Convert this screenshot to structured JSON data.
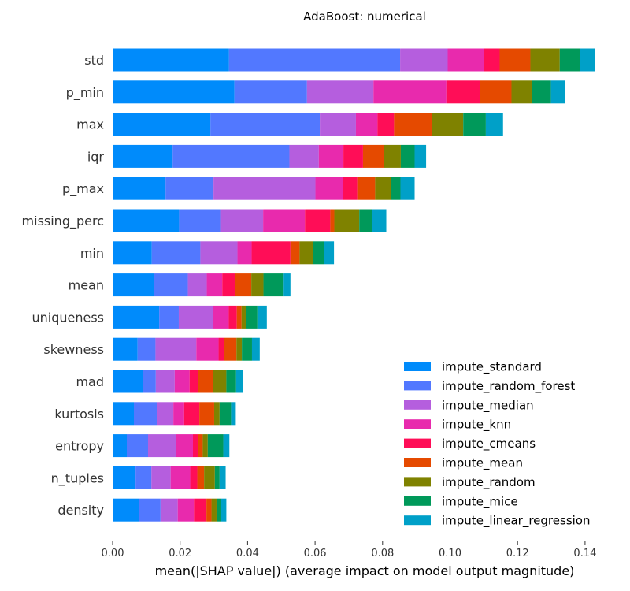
{
  "chart_data": {
    "type": "bar",
    "orientation": "horizontal",
    "stacked": true,
    "title": "AdaBoost: numerical",
    "xlabel": "mean(|SHAP value|) (average impact on model output magnitude)",
    "ylabel": "",
    "xlim": [
      0,
      0.15
    ],
    "xticks": [
      "0.00",
      "0.02",
      "0.04",
      "0.06",
      "0.08",
      "0.10",
      "0.12",
      "0.14"
    ],
    "xtick_values": [
      0,
      0.02,
      0.04,
      0.06,
      0.08,
      0.1,
      0.12,
      0.14
    ],
    "grid": false,
    "legend_position": "lower-right",
    "categories": [
      "std",
      "p_min",
      "max",
      "iqr",
      "p_max",
      "missing_perc",
      "min",
      "mean",
      "uniqueness",
      "skewness",
      "mad",
      "kurtosis",
      "entropy",
      "n_tuples",
      "density"
    ],
    "series": [
      {
        "name": "impute_standard",
        "color": "#008bfb",
        "values": [
          0.0345,
          0.0361,
          0.029,
          0.0178,
          0.0157,
          0.0197,
          0.0116,
          0.0122,
          0.0138,
          0.0074,
          0.0089,
          0.0063,
          0.0042,
          0.0068,
          0.0078
        ]
      },
      {
        "name": "impute_random_forest",
        "color": "#5278ff",
        "values": [
          0.0507,
          0.0215,
          0.0324,
          0.0346,
          0.0142,
          0.0124,
          0.0144,
          0.0101,
          0.0058,
          0.0053,
          0.0039,
          0.0068,
          0.0063,
          0.0047,
          0.0064
        ]
      },
      {
        "name": "impute_median",
        "color": "#b55ede",
        "values": [
          0.0141,
          0.0197,
          0.0107,
          0.0087,
          0.0302,
          0.0125,
          0.011,
          0.0056,
          0.0101,
          0.0121,
          0.0056,
          0.0049,
          0.0082,
          0.0057,
          0.0051
        ]
      },
      {
        "name": "impute_knn",
        "color": "#e82aad",
        "values": [
          0.0108,
          0.0216,
          0.0064,
          0.0073,
          0.0081,
          0.0124,
          0.0042,
          0.0046,
          0.0047,
          0.0066,
          0.0044,
          0.0032,
          0.0051,
          0.0058,
          0.0048
        ]
      },
      {
        "name": "impute_cmeans",
        "color": "#ff0d57",
        "values": [
          0.0046,
          0.0099,
          0.0049,
          0.0058,
          0.0043,
          0.0075,
          0.0115,
          0.0038,
          0.0024,
          0.0016,
          0.0025,
          0.0045,
          0.0015,
          0.0021,
          0.0037
        ]
      },
      {
        "name": "impute_mean",
        "color": "#e54a00",
        "values": [
          0.0091,
          0.0094,
          0.0112,
          0.0061,
          0.0053,
          0.0012,
          0.0027,
          0.0048,
          0.0014,
          0.0037,
          0.0044,
          0.0044,
          0.0014,
          0.002,
          0.0015
        ]
      },
      {
        "name": "impute_random",
        "color": "#7f8200",
        "values": [
          0.0087,
          0.0061,
          0.0093,
          0.0051,
          0.0046,
          0.0074,
          0.0039,
          0.0036,
          0.0014,
          0.0016,
          0.004,
          0.0016,
          0.0015,
          0.0032,
          0.0015
        ]
      },
      {
        "name": "impute_mice",
        "color": "#00995a",
        "values": [
          0.0059,
          0.0056,
          0.0067,
          0.0041,
          0.0029,
          0.0039,
          0.0034,
          0.006,
          0.0033,
          0.003,
          0.0029,
          0.0034,
          0.0046,
          0.0014,
          0.0014
        ]
      },
      {
        "name": "impute_linear_regression",
        "color": "#00a0c8",
        "values": [
          0.0046,
          0.0041,
          0.0051,
          0.0034,
          0.0042,
          0.0041,
          0.0029,
          0.002,
          0.0028,
          0.0023,
          0.0021,
          0.0014,
          0.0018,
          0.0018,
          0.0015
        ]
      }
    ]
  }
}
